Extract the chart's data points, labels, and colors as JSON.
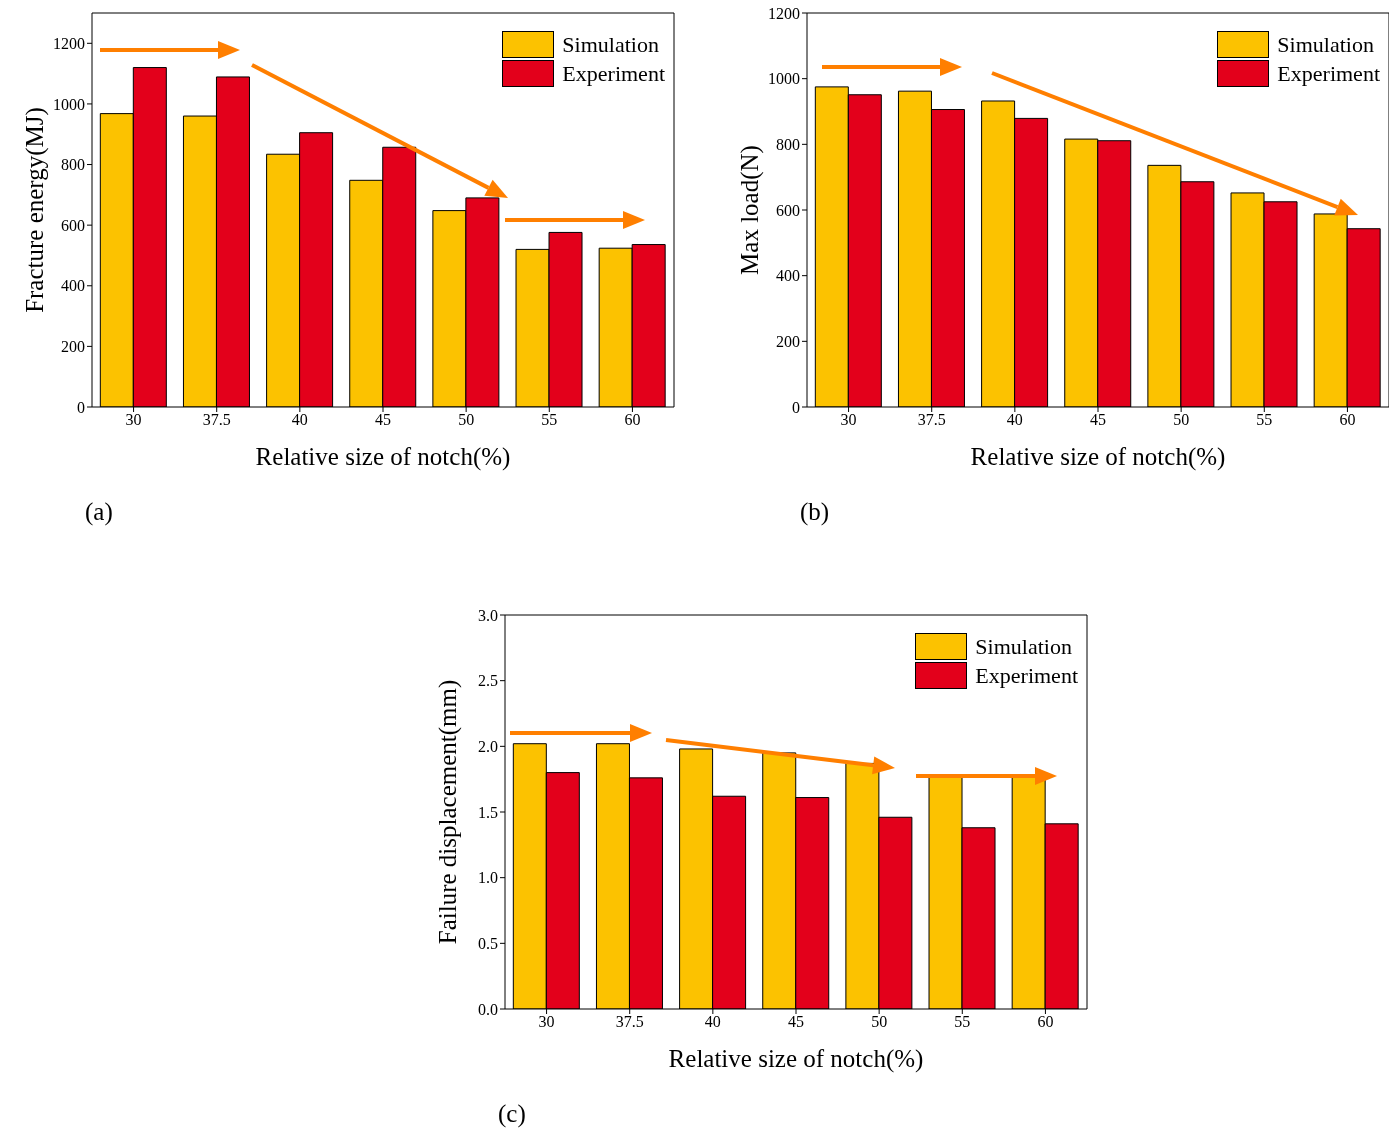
{
  "chart_data": [
    {
      "type": "bar",
      "xlabel": "Relative size of notch(%)",
      "ylabel": "Fracture energy(MJ)",
      "categories": [
        "30",
        "37.5",
        "40",
        "45",
        "50",
        "55",
        "60"
      ],
      "series": [
        {
          "name": "Simulation",
          "color": "#fcc200",
          "values": [
            968,
            960,
            834,
            748,
            648,
            520,
            524
          ]
        },
        {
          "name": "Experiment",
          "color": "#e3001b",
          "values": [
            1120,
            1089,
            905,
            857,
            690,
            576,
            536
          ]
        }
      ],
      "ylim": [
        0,
        1300
      ],
      "yticks": [
        0,
        200,
        400,
        600,
        800,
        1000,
        1200
      ],
      "legend": "top right",
      "annotations": [
        "(a)"
      ]
    },
    {
      "type": "bar",
      "xlabel": "Relative size of notch(%)",
      "ylabel": "Max load(N)",
      "categories": [
        "30",
        "37.5",
        "40",
        "45",
        "50",
        "55",
        "60"
      ],
      "series": [
        {
          "name": "Simulation",
          "color": "#fcc200",
          "values": [
            975,
            962,
            932,
            816,
            736,
            652,
            588
          ]
        },
        {
          "name": "Experiment",
          "color": "#e3001b",
          "values": [
            951,
            906,
            879,
            811,
            686,
            625,
            543
          ]
        }
      ],
      "ylim": [
        0,
        1200
      ],
      "yticks": [
        0,
        200,
        400,
        600,
        800,
        1000,
        1200
      ],
      "legend": "top right",
      "annotations": [
        "(b)"
      ]
    },
    {
      "type": "bar",
      "xlabel": "Relative size of notch(%)",
      "ylabel": "Failure displacement(mm)",
      "categories": [
        "30",
        "37.5",
        "40",
        "45",
        "50",
        "55",
        "60"
      ],
      "series": [
        {
          "name": "Simulation",
          "color": "#fcc200",
          "values": [
            2.02,
            2.02,
            1.98,
            1.95,
            1.87,
            1.77,
            1.77
          ]
        },
        {
          "name": "Experiment",
          "color": "#e3001b",
          "values": [
            1.8,
            1.76,
            1.62,
            1.61,
            1.46,
            1.38,
            1.41
          ]
        }
      ],
      "ylim": [
        0,
        3
      ],
      "yticks": [
        {
          "value": 0,
          "label": "0.0"
        },
        {
          "value": 0.5,
          "label": "0.5"
        },
        {
          "value": 1,
          "label": "1.0"
        },
        {
          "value": 1.5,
          "label": "1.5"
        },
        {
          "value": 2,
          "label": "2.0"
        },
        {
          "value": 2.5,
          "label": "2.5"
        },
        {
          "value": 3,
          "label": "3.0"
        }
      ],
      "legend": "top right",
      "annotations": [
        "(c)"
      ]
    }
  ]
}
